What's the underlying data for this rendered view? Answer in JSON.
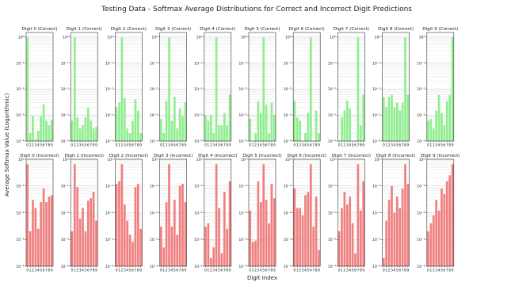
{
  "figure": {
    "title": "Testing Data - Softmax Average Distributions for Correct and Incorrect Digit Predictions",
    "xlabel": "Digit Index",
    "ylabel": "Average Softmax Value (Logarithmic)"
  },
  "colors": {
    "correct": "#90ee90",
    "incorrect": "#f08080",
    "grid": "#d9d9d9",
    "axis": "#333333"
  },
  "chart_data": [
    {
      "type": "bar",
      "title": "Digit 0 (Correct)",
      "y_scale": "log",
      "grid": "on",
      "ylim": [
        0.0001,
        1.5
      ],
      "y_ticks": [
        0.0001,
        0.001,
        0.01,
        0.1,
        1
      ],
      "categories": [
        "0",
        "1",
        "2",
        "3",
        "4",
        "5",
        "6",
        "7",
        "8",
        "9"
      ],
      "values": [
        0.98,
        0.0002,
        0.0009,
        0.00012,
        0.00025,
        0.0009,
        0.0026,
        0.0006,
        0.0004,
        0.00065
      ]
    },
    {
      "type": "bar",
      "title": "Digit 1 (Correct)",
      "y_scale": "log",
      "grid": "on",
      "ylim": [
        0.0001,
        1.5
      ],
      "y_ticks": [
        0.0001,
        0.001,
        0.01,
        0.1,
        1
      ],
      "categories": [
        "0",
        "1",
        "2",
        "3",
        "4",
        "5",
        "6",
        "7",
        "8",
        "9"
      ],
      "values": [
        0.0006,
        0.98,
        0.0008,
        0.0003,
        0.0004,
        0.0008,
        0.0019,
        0.0006,
        0.0003,
        0.00035
      ]
    },
    {
      "type": "bar",
      "title": "Digit 2 (Correct)",
      "y_scale": "log",
      "grid": "on",
      "ylim": [
        0.0001,
        1.5
      ],
      "y_ticks": [
        0.0001,
        0.001,
        0.01,
        0.1,
        1
      ],
      "categories": [
        "0",
        "1",
        "2",
        "3",
        "4",
        "5",
        "6",
        "7",
        "8",
        "9"
      ],
      "values": [
        0.002,
        0.003,
        0.97,
        0.0045,
        0.0003,
        0.0002,
        0.0006,
        0.004,
        0.0015,
        0.0002
      ]
    },
    {
      "type": "bar",
      "title": "Digit 3 (Correct)",
      "y_scale": "log",
      "grid": "on",
      "ylim": [
        0.0001,
        1.5
      ],
      "y_ticks": [
        0.0001,
        0.001,
        0.01,
        0.1,
        1
      ],
      "categories": [
        "0",
        "1",
        "2",
        "3",
        "4",
        "5",
        "6",
        "7",
        "8",
        "9"
      ],
      "values": [
        0.0007,
        0.0002,
        0.0035,
        0.97,
        0.0006,
        0.005,
        0.0003,
        0.0018,
        0.0009,
        0.0032
      ]
    },
    {
      "type": "bar",
      "title": "Digit 4 (Correct)",
      "y_scale": "log",
      "grid": "on",
      "ylim": [
        0.0001,
        1.5
      ],
      "y_ticks": [
        0.0001,
        0.001,
        0.01,
        0.1,
        1
      ],
      "categories": [
        "0",
        "1",
        "2",
        "3",
        "4",
        "5",
        "6",
        "7",
        "8",
        "9"
      ],
      "values": [
        0.001,
        0.0006,
        0.001,
        0.0002,
        0.97,
        0.0004,
        0.0004,
        0.0012,
        0.0004,
        0.006
      ]
    },
    {
      "type": "bar",
      "title": "Digit 5 (Correct)",
      "y_scale": "log",
      "grid": "on",
      "ylim": [
        0.0001,
        1.5
      ],
      "y_ticks": [
        0.0001,
        0.001,
        0.01,
        0.1,
        1
      ],
      "categories": [
        "0",
        "1",
        "2",
        "3",
        "4",
        "5",
        "6",
        "7",
        "8",
        "9"
      ],
      "values": [
        0.0007,
        0.0001,
        0.0002,
        0.0035,
        0.0012,
        0.97,
        0.0025,
        0.0002,
        0.003,
        0.001
      ]
    },
    {
      "type": "bar",
      "title": "Digit 6 (Correct)",
      "y_scale": "log",
      "grid": "on",
      "ylim": [
        0.0001,
        1.5
      ],
      "y_ticks": [
        0.0001,
        0.001,
        0.01,
        0.1,
        1
      ],
      "categories": [
        "0",
        "1",
        "2",
        "3",
        "4",
        "5",
        "6",
        "7",
        "8",
        "9"
      ],
      "values": [
        0.0035,
        0.0008,
        0.0006,
        0.0001,
        0.0002,
        0.0012,
        0.97,
        0.0001,
        0.0015,
        0.0002
      ]
    },
    {
      "type": "bar",
      "title": "Digit 7 (Correct)",
      "y_scale": "log",
      "grid": "on",
      "ylim": [
        0.0001,
        1.5
      ],
      "y_ticks": [
        0.0001,
        0.001,
        0.01,
        0.1,
        1
      ],
      "categories": [
        "0",
        "1",
        "2",
        "3",
        "4",
        "5",
        "6",
        "7",
        "8",
        "9"
      ],
      "values": [
        0.0001,
        0.0008,
        0.0015,
        0.0036,
        0.0018,
        0.0001,
        0.0001,
        0.97,
        0.0004,
        0.006
      ]
    },
    {
      "type": "bar",
      "title": "Digit 8 (Correct)",
      "y_scale": "log",
      "grid": "on",
      "ylim": [
        0.0001,
        1.5
      ],
      "y_ticks": [
        0.0001,
        0.001,
        0.01,
        0.1,
        1
      ],
      "categories": [
        "0",
        "1",
        "2",
        "3",
        "4",
        "5",
        "6",
        "7",
        "8",
        "9"
      ],
      "values": [
        0.005,
        0.002,
        0.005,
        0.006,
        0.002,
        0.003,
        0.0015,
        0.003,
        0.97,
        0.006
      ]
    },
    {
      "type": "bar",
      "title": "Digit 9 (Correct)",
      "y_scale": "log",
      "grid": "on",
      "ylim": [
        0.0001,
        1.5
      ],
      "y_ticks": [
        0.0001,
        0.001,
        0.01,
        0.1,
        1
      ],
      "categories": [
        "0",
        "1",
        "2",
        "3",
        "4",
        "5",
        "6",
        "7",
        "8",
        "9"
      ],
      "values": [
        0.0006,
        0.0007,
        0.0003,
        0.0015,
        0.006,
        0.0012,
        0.0004,
        0.0035,
        0.006,
        0.97
      ]
    },
    {
      "type": "bar",
      "title": "Digit 0 (Incorrect)",
      "y_scale": "log",
      "grid": "on",
      "ylim": [
        0.0001,
        1.0
      ],
      "y_ticks": [
        0.0001,
        0.001,
        0.01,
        0.1,
        1
      ],
      "categories": [
        "0",
        "1",
        "2",
        "3",
        "4",
        "5",
        "6",
        "7",
        "8",
        "9"
      ],
      "values": [
        0.65,
        0.002,
        0.03,
        0.015,
        0.0025,
        0.025,
        0.08,
        0.025,
        0.04,
        0.045
      ]
    },
    {
      "type": "bar",
      "title": "Digit 1 (Incorrect)",
      "y_scale": "log",
      "grid": "on",
      "ylim": [
        0.0001,
        1.0
      ],
      "y_ticks": [
        0.0001,
        0.001,
        0.01,
        0.1,
        1
      ],
      "categories": [
        "0",
        "1",
        "2",
        "3",
        "4",
        "5",
        "6",
        "7",
        "8",
        "9"
      ],
      "values": [
        0.002,
        0.65,
        0.09,
        0.006,
        0.015,
        0.002,
        0.028,
        0.035,
        0.06,
        0.005
      ]
    },
    {
      "type": "bar",
      "title": "Digit 2 (Incorrect)",
      "y_scale": "log",
      "grid": "on",
      "ylim": [
        0.0001,
        1.0
      ],
      "y_ticks": [
        0.0001,
        0.001,
        0.01,
        0.1,
        1
      ],
      "categories": [
        "0",
        "1",
        "2",
        "3",
        "4",
        "5",
        "6",
        "7",
        "8",
        "9"
      ],
      "values": [
        0.12,
        0.15,
        0.65,
        0.02,
        0.005,
        0.0015,
        0.0008,
        0.09,
        0.12,
        0.0025
      ]
    },
    {
      "type": "bar",
      "title": "Digit 3 (Incorrect)",
      "y_scale": "log",
      "grid": "on",
      "ylim": [
        0.0001,
        1.0
      ],
      "y_ticks": [
        0.0001,
        0.001,
        0.01,
        0.1,
        1
      ],
      "categories": [
        "0",
        "1",
        "2",
        "3",
        "4",
        "5",
        "6",
        "7",
        "8",
        "9"
      ],
      "values": [
        0.003,
        0.0005,
        0.025,
        0.65,
        0.003,
        0.03,
        0.0015,
        0.1,
        0.12,
        0.025
      ]
    },
    {
      "type": "bar",
      "title": "Digit 4 (Incorrect)",
      "y_scale": "log",
      "grid": "on",
      "ylim": [
        0.0001,
        1.0
      ],
      "y_ticks": [
        0.0001,
        0.001,
        0.01,
        0.1,
        1
      ],
      "categories": [
        "0",
        "1",
        "2",
        "3",
        "4",
        "5",
        "6",
        "7",
        "8",
        "9"
      ],
      "values": [
        0.003,
        0.004,
        0.0002,
        0.0005,
        0.65,
        0.015,
        0.0003,
        0.06,
        0.0025,
        0.15
      ]
    },
    {
      "type": "bar",
      "title": "Digit 5 (Incorrect)",
      "y_scale": "log",
      "grid": "on",
      "ylim": [
        0.0001,
        1.0
      ],
      "y_ticks": [
        0.0001,
        0.001,
        0.01,
        0.1,
        1
      ],
      "categories": [
        "0",
        "1",
        "2",
        "3",
        "4",
        "5",
        "6",
        "7",
        "8",
        "9"
      ],
      "values": [
        0.012,
        0.0008,
        0.0009,
        0.15,
        0.025,
        0.65,
        0.03,
        0.004,
        0.12,
        0.035
      ]
    },
    {
      "type": "bar",
      "title": "Digit 6 (Incorrect)",
      "y_scale": "log",
      "grid": "on",
      "ylim": [
        0.0001,
        1.0
      ],
      "y_ticks": [
        0.0001,
        0.001,
        0.01,
        0.1,
        1
      ],
      "categories": [
        "0",
        "1",
        "2",
        "3",
        "4",
        "5",
        "6",
        "7",
        "8",
        "9"
      ],
      "values": [
        0.08,
        0.015,
        0.015,
        0.008,
        0.045,
        0.06,
        0.65,
        0.003,
        0.04,
        0.0004
      ]
    },
    {
      "type": "bar",
      "title": "Digit 7 (Incorrect)",
      "y_scale": "log",
      "grid": "on",
      "ylim": [
        0.0001,
        1.0
      ],
      "y_ticks": [
        0.0001,
        0.001,
        0.01,
        0.1,
        1
      ],
      "categories": [
        "0",
        "1",
        "2",
        "3",
        "4",
        "5",
        "6",
        "7",
        "8",
        "9"
      ],
      "values": [
        0.002,
        0.015,
        0.06,
        0.02,
        0.04,
        0.004,
        0.0003,
        0.65,
        0.012,
        0.15
      ]
    },
    {
      "type": "bar",
      "title": "Digit 8 (Incorrect)",
      "y_scale": "log",
      "grid": "on",
      "ylim": [
        0.0001,
        1.0
      ],
      "y_ticks": [
        0.0001,
        0.001,
        0.01,
        0.1,
        1
      ],
      "categories": [
        "0",
        "1",
        "2",
        "3",
        "4",
        "5",
        "6",
        "7",
        "8",
        "9"
      ],
      "values": [
        0.0002,
        0.005,
        0.03,
        0.1,
        0.01,
        0.04,
        0.015,
        0.08,
        0.65,
        0.12
      ]
    },
    {
      "type": "bar",
      "title": "Digit 9 (Incorrect)",
      "y_scale": "log",
      "grid": "on",
      "ylim": [
        0.0001,
        1.0
      ],
      "y_ticks": [
        0.0001,
        0.001,
        0.01,
        0.1,
        1
      ],
      "categories": [
        "0",
        "1",
        "2",
        "3",
        "4",
        "5",
        "6",
        "7",
        "8",
        "9"
      ],
      "values": [
        0.002,
        0.004,
        0.008,
        0.03,
        0.012,
        0.08,
        0.05,
        0.15,
        0.25,
        0.65
      ]
    }
  ]
}
